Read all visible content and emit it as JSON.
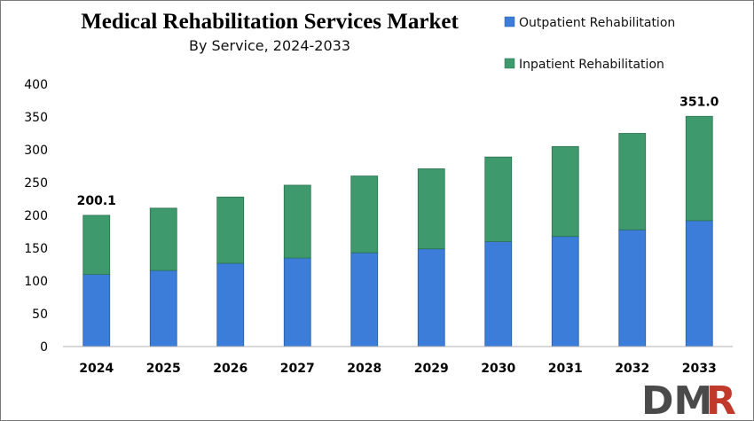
{
  "chart_data": {
    "type": "bar",
    "stacked": true,
    "title": "Medical Rehabilitation Services Market",
    "subtitle": "By Service, 2024-2033",
    "categories": [
      "2024",
      "2025",
      "2026",
      "2027",
      "2028",
      "2029",
      "2030",
      "2031",
      "2032",
      "2033"
    ],
    "series": [
      {
        "name": "Outpatient Rehabilitation",
        "color": "#3b7dd8",
        "values": [
          110,
          116,
          127,
          135,
          143,
          149,
          160,
          168,
          178,
          192
        ]
      },
      {
        "name": "Inpatient Rehabilitation",
        "color": "#3e9a6c",
        "values": [
          90.1,
          95,
          101,
          111,
          117,
          122,
          129,
          137,
          147,
          159
        ]
      }
    ],
    "data_labels": [
      {
        "category": "2024",
        "text": "200.1"
      },
      {
        "category": "2033",
        "text": "351.0"
      }
    ],
    "ylim": [
      0,
      400
    ],
    "yticks": [
      0,
      50,
      100,
      150,
      200,
      250,
      300,
      350,
      400
    ],
    "grid": false,
    "legend_position": "top-right"
  },
  "branding": {
    "logo_text": "DMR",
    "logo_color_dark": "#4a4a4a",
    "logo_color_accent": "#c0392b"
  }
}
